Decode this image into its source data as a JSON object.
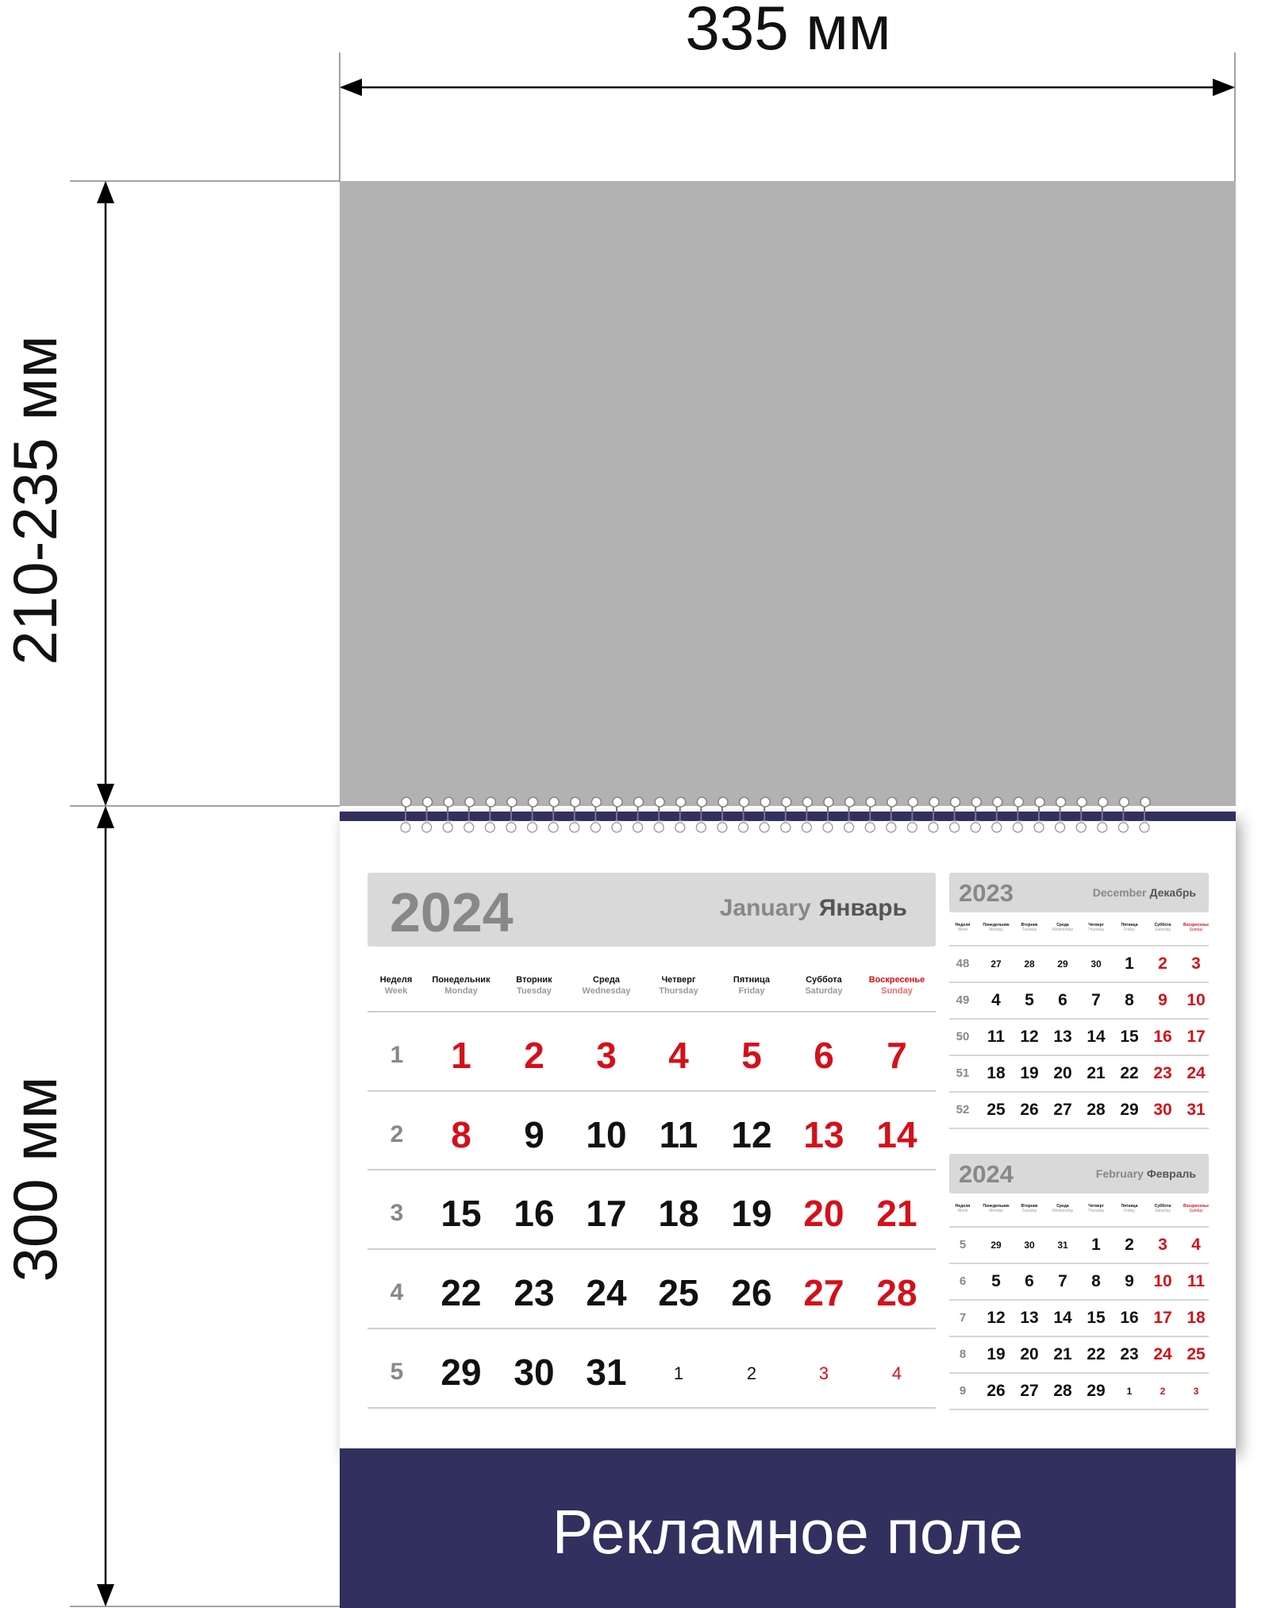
{
  "dimensions": {
    "width_label": "335 мм",
    "top_height_label": "210-235 мм",
    "bottom_height_label": "300 мм"
  },
  "ad_field": {
    "label": "Рекламное поле"
  },
  "colors": {
    "band": "#31305f",
    "holiday_red": "#d4101a",
    "image_area": "#b2b2b2"
  },
  "main_month": {
    "year": "2024",
    "month_en": "January",
    "month_ru": "Январь",
    "dow": [
      {
        "ru": "Неделя",
        "en": "Week"
      },
      {
        "ru": "Понедельник",
        "en": "Monday"
      },
      {
        "ru": "Вторник",
        "en": "Tuesday"
      },
      {
        "ru": "Среда",
        "en": "Wednesday"
      },
      {
        "ru": "Четверг",
        "en": "Thursday"
      },
      {
        "ru": "Пятница",
        "en": "Friday"
      },
      {
        "ru": "Суббота",
        "en": "Saturday"
      },
      {
        "ru": "Воскресенье",
        "en": "Sunday"
      }
    ],
    "weeks": [
      {
        "week": "1",
        "days": [
          "1",
          "2",
          "3",
          "4",
          "5",
          "6",
          "7"
        ],
        "red": [
          true,
          true,
          true,
          true,
          true,
          true,
          true
        ],
        "small": [
          false,
          false,
          false,
          false,
          false,
          false,
          false
        ]
      },
      {
        "week": "2",
        "days": [
          "8",
          "9",
          "10",
          "11",
          "12",
          "13",
          "14"
        ],
        "red": [
          true,
          false,
          false,
          false,
          false,
          true,
          true
        ],
        "small": [
          false,
          false,
          false,
          false,
          false,
          false,
          false
        ]
      },
      {
        "week": "3",
        "days": [
          "15",
          "16",
          "17",
          "18",
          "19",
          "20",
          "21"
        ],
        "red": [
          false,
          false,
          false,
          false,
          false,
          true,
          true
        ],
        "small": [
          false,
          false,
          false,
          false,
          false,
          false,
          false
        ]
      },
      {
        "week": "4",
        "days": [
          "22",
          "23",
          "24",
          "25",
          "26",
          "27",
          "28"
        ],
        "red": [
          false,
          false,
          false,
          false,
          false,
          true,
          true
        ],
        "small": [
          false,
          false,
          false,
          false,
          false,
          false,
          false
        ]
      },
      {
        "week": "5",
        "days": [
          "29",
          "30",
          "31",
          "1",
          "2",
          "3",
          "4"
        ],
        "red": [
          false,
          false,
          false,
          false,
          false,
          true,
          true
        ],
        "small": [
          false,
          false,
          false,
          true,
          true,
          true,
          true
        ]
      }
    ]
  },
  "small_months": [
    {
      "year": "2023",
      "month_en": "December",
      "month_ru": "Декабрь",
      "weeks": [
        {
          "week": "48",
          "days": [
            "27",
            "28",
            "29",
            "30",
            "1",
            "2",
            "3"
          ],
          "red": [
            false,
            false,
            false,
            false,
            false,
            true,
            true
          ],
          "small": [
            true,
            true,
            true,
            true,
            false,
            false,
            false
          ]
        },
        {
          "week": "49",
          "days": [
            "4",
            "5",
            "6",
            "7",
            "8",
            "9",
            "10"
          ],
          "red": [
            false,
            false,
            false,
            false,
            false,
            true,
            true
          ],
          "small": [
            false,
            false,
            false,
            false,
            false,
            false,
            false
          ]
        },
        {
          "week": "50",
          "days": [
            "11",
            "12",
            "13",
            "14",
            "15",
            "16",
            "17"
          ],
          "red": [
            false,
            false,
            false,
            false,
            false,
            true,
            true
          ],
          "small": [
            false,
            false,
            false,
            false,
            false,
            false,
            false
          ]
        },
        {
          "week": "51",
          "days": [
            "18",
            "19",
            "20",
            "21",
            "22",
            "23",
            "24"
          ],
          "red": [
            false,
            false,
            false,
            false,
            false,
            true,
            true
          ],
          "small": [
            false,
            false,
            false,
            false,
            false,
            false,
            false
          ]
        },
        {
          "week": "52",
          "days": [
            "25",
            "26",
            "27",
            "28",
            "29",
            "30",
            "31"
          ],
          "red": [
            false,
            false,
            false,
            false,
            false,
            true,
            true
          ],
          "small": [
            false,
            false,
            false,
            false,
            false,
            false,
            false
          ]
        }
      ]
    },
    {
      "year": "2024",
      "month_en": "February",
      "month_ru": "Февраль",
      "weeks": [
        {
          "week": "5",
          "days": [
            "29",
            "30",
            "31",
            "1",
            "2",
            "3",
            "4"
          ],
          "red": [
            false,
            false,
            false,
            false,
            false,
            true,
            true
          ],
          "small": [
            true,
            true,
            true,
            false,
            false,
            false,
            false
          ]
        },
        {
          "week": "6",
          "days": [
            "5",
            "6",
            "7",
            "8",
            "9",
            "10",
            "11"
          ],
          "red": [
            false,
            false,
            false,
            false,
            false,
            true,
            true
          ],
          "small": [
            false,
            false,
            false,
            false,
            false,
            false,
            false
          ]
        },
        {
          "week": "7",
          "days": [
            "12",
            "13",
            "14",
            "15",
            "16",
            "17",
            "18"
          ],
          "red": [
            false,
            false,
            false,
            false,
            false,
            true,
            true
          ],
          "small": [
            false,
            false,
            false,
            false,
            false,
            false,
            false
          ]
        },
        {
          "week": "8",
          "days": [
            "19",
            "20",
            "21",
            "22",
            "23",
            "24",
            "25"
          ],
          "red": [
            false,
            false,
            false,
            false,
            false,
            true,
            true
          ],
          "small": [
            false,
            false,
            false,
            false,
            false,
            false,
            false
          ]
        },
        {
          "week": "9",
          "days": [
            "26",
            "27",
            "28",
            "29",
            "1",
            "2",
            "3"
          ],
          "red": [
            false,
            false,
            false,
            false,
            false,
            true,
            true
          ],
          "small": [
            false,
            false,
            false,
            false,
            true,
            true,
            true
          ]
        }
      ]
    }
  ]
}
